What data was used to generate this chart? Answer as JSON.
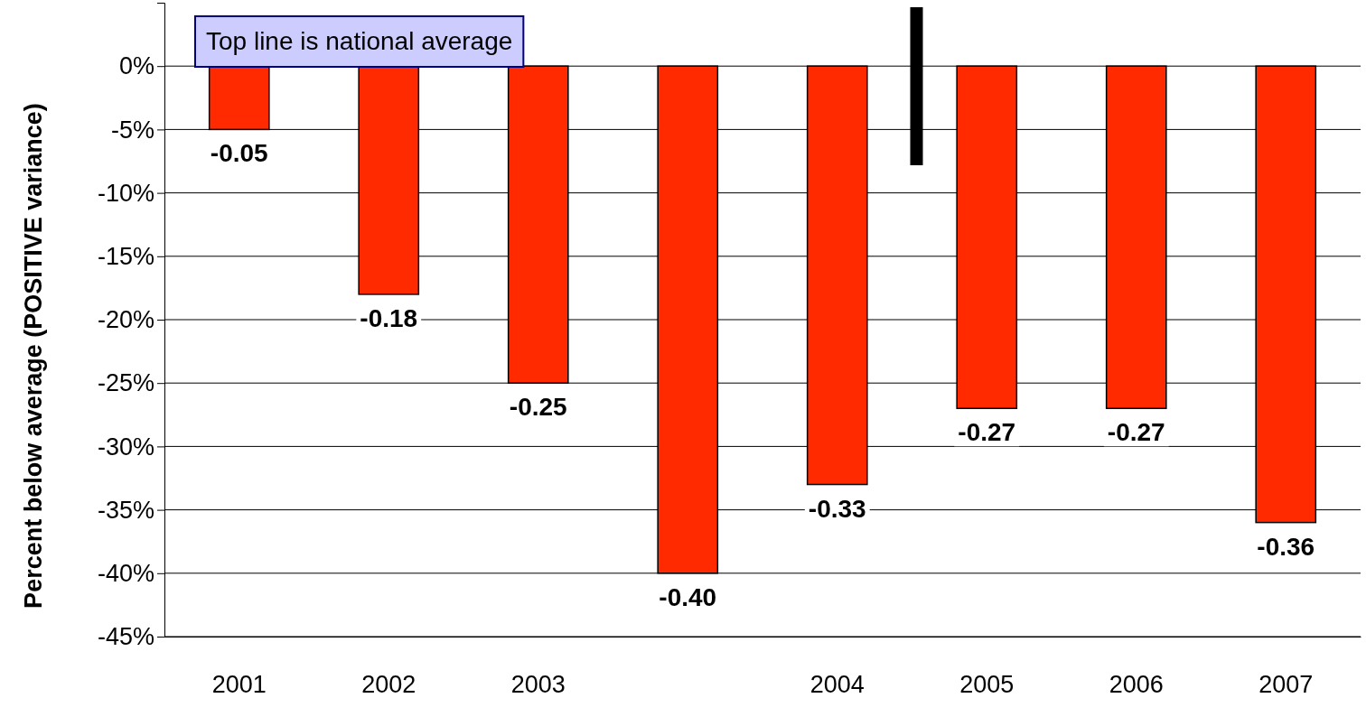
{
  "chart_data": {
    "type": "bar",
    "ylabel": "Percent below average (POSITIVE variance)",
    "annotations": [
      "Top line is national average"
    ],
    "categories": [
      "2001",
      "2002",
      "2003",
      null,
      "2004",
      "2005",
      "2006",
      "2007"
    ],
    "values": [
      -0.05,
      -0.18,
      -0.25,
      -0.4,
      -0.33,
      -0.27,
      -0.27,
      -0.36
    ],
    "value_labels": [
      "-0.05",
      "-0.18",
      "-0.25",
      "-0.40",
      "-0.33",
      "-0.27",
      "-0.27",
      "-0.36"
    ],
    "color": "#ff2a00",
    "ylim": [
      -0.45,
      0.05
    ],
    "yticks": [
      {
        "value": -0.45,
        "label": "-45%"
      },
      {
        "value": -0.4,
        "label": "-40%"
      },
      {
        "value": -0.35,
        "label": "-35%"
      },
      {
        "value": -0.3,
        "label": "-30%"
      },
      {
        "value": -0.25,
        "label": "-25%"
      },
      {
        "value": -0.2,
        "label": "-20%"
      },
      {
        "value": -0.15,
        "label": "-15%"
      },
      {
        "value": -0.1,
        "label": "-10%"
      },
      {
        "value": -0.05,
        "label": "-5%"
      },
      {
        "value": 0,
        "label": "0%"
      }
    ],
    "grid": "y"
  }
}
